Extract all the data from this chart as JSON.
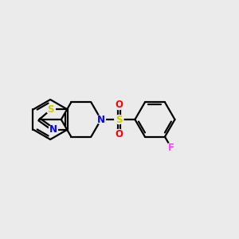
{
  "background_color": "#ebebeb",
  "bond_color": "#000000",
  "S_color": "#cccc00",
  "N_color": "#0000ff",
  "O_color": "#ff0000",
  "F_color": "#ff44ff",
  "line_width": 1.6,
  "figsize": [
    3.0,
    3.0
  ],
  "dpi": 100,
  "xlim": [
    0,
    10
  ],
  "ylim": [
    2,
    8
  ]
}
